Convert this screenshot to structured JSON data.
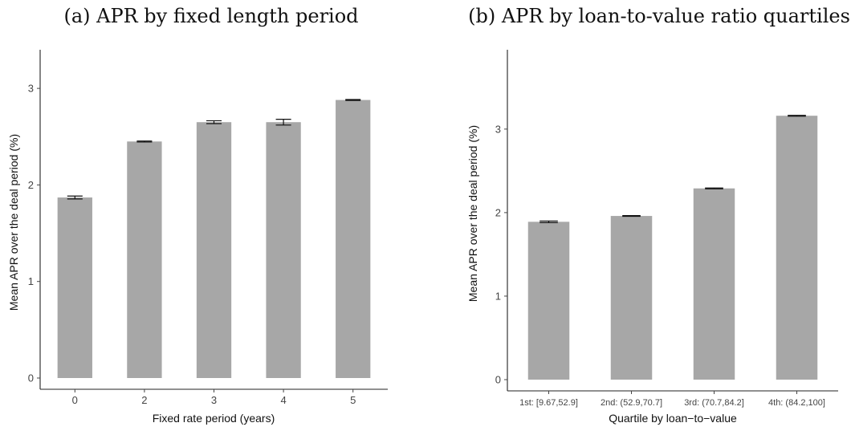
{
  "chart_data": [
    {
      "type": "bar",
      "title": "(a) APR by fixed length period",
      "xlabel": "Fixed rate period (years)",
      "ylabel": "Mean APR over the deal period (%)",
      "categories": [
        "0",
        "2",
        "3",
        "4",
        "5"
      ],
      "values": [
        1.87,
        2.45,
        2.65,
        2.65,
        2.88
      ],
      "error_low": [
        1.855,
        2.445,
        2.635,
        2.62,
        2.875
      ],
      "error_high": [
        1.885,
        2.455,
        2.665,
        2.68,
        2.885
      ],
      "yticks": [
        "0",
        "1",
        "2",
        "3"
      ],
      "ylim": [
        0,
        3.4
      ],
      "grid": false,
      "bar_color": "#a7a7a7"
    },
    {
      "type": "bar",
      "title": "(b) APR by loan-to-value ratio quartiles",
      "xlabel": "Quartile by loan−to−value",
      "ylabel": "Mean APR over the deal period (%)",
      "categories": [
        "1st: [9.67,52.9]",
        "2nd: (52.9,70.7]",
        "3rd: (70.7,84.2]",
        "4th: (84.2,100]"
      ],
      "values": [
        1.89,
        1.96,
        2.29,
        3.16
      ],
      "error_low": [
        1.88,
        1.955,
        2.285,
        3.155
      ],
      "error_high": [
        1.9,
        1.965,
        2.295,
        3.165
      ],
      "yticks": [
        "0",
        "1",
        "2",
        "3"
      ],
      "ylim": [
        0,
        3.95
      ],
      "grid": false,
      "bar_color": "#a7a7a7"
    }
  ]
}
